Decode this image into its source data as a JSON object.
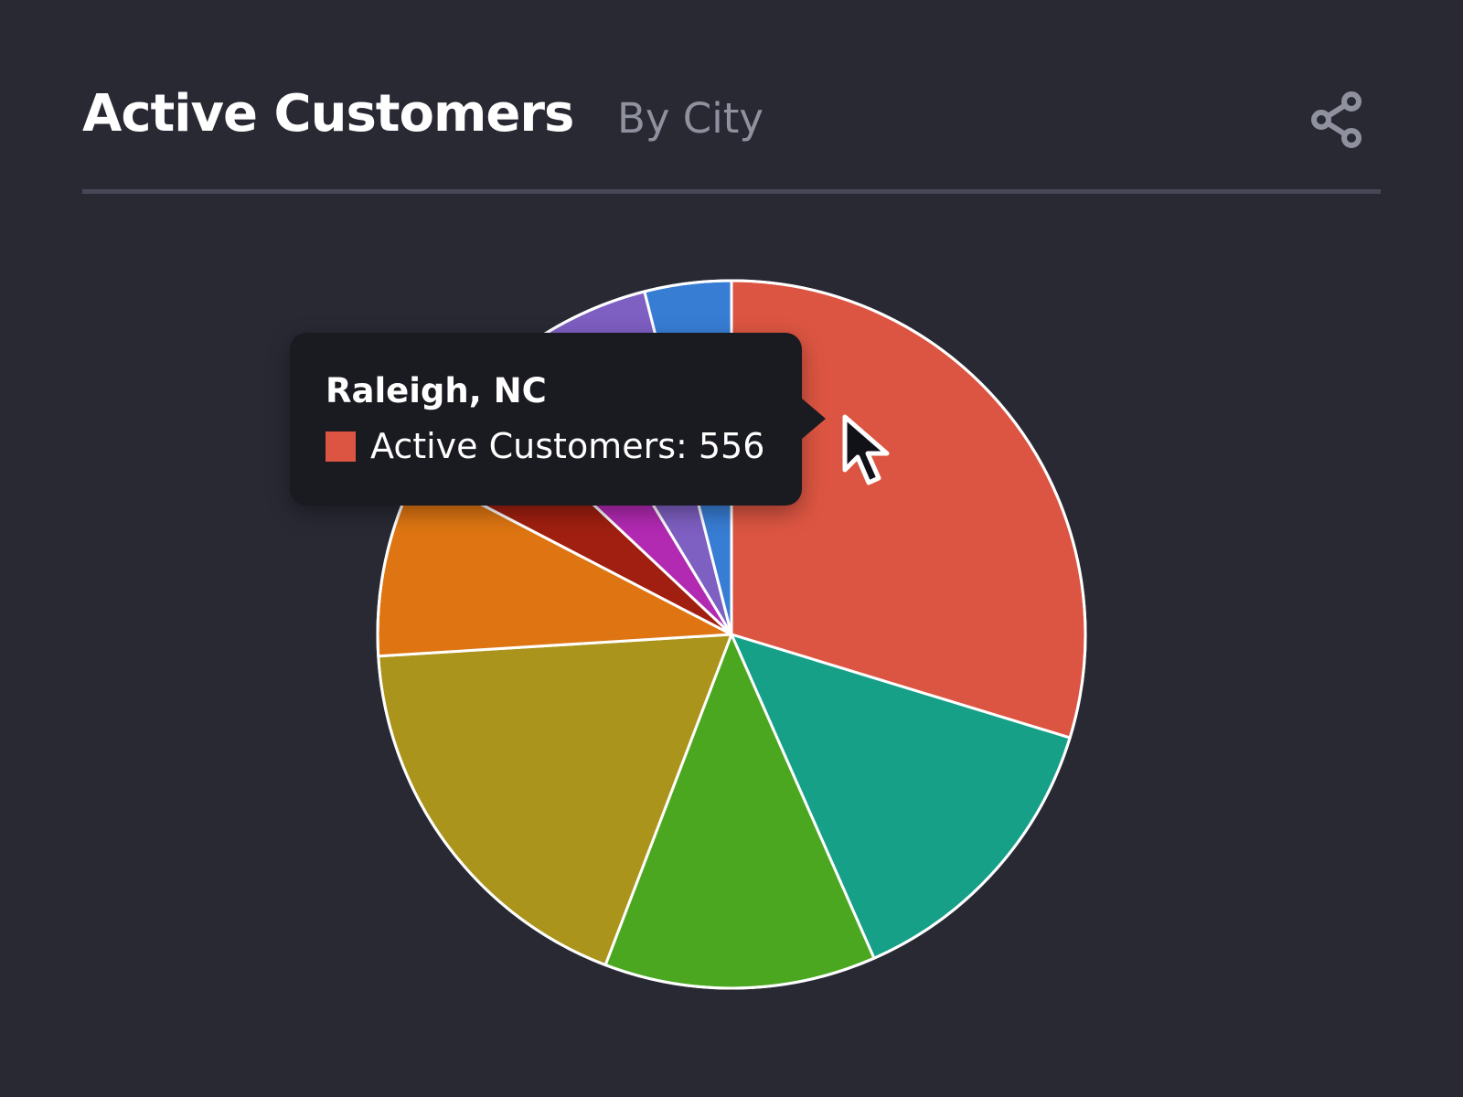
{
  "header": {
    "title": "Active Customers",
    "subtitle": "By City",
    "share_icon": "share-icon"
  },
  "tooltip": {
    "category": "Raleigh, NC",
    "series_label": "Active Customers",
    "value": "556",
    "text": "Active Customers: 556",
    "swatch_color": "#dc5542"
  },
  "chart_data": {
    "type": "pie",
    "title": "Active Customers",
    "subtitle": "By City",
    "series_name": "Active Customers",
    "slice_border_color": "#ffffff",
    "background_color": "#282933",
    "start_angle_deg": 0,
    "direction": "clockwise",
    "slices": [
      {
        "label": "Raleigh, NC",
        "value": 556,
        "color": "#dc5542"
      },
      {
        "label": "",
        "value": 256,
        "color": "#16a088"
      },
      {
        "label": "",
        "value": 232,
        "color": "#4ba720"
      },
      {
        "label": "",
        "value": 341,
        "color": "#ab941b"
      },
      {
        "label": "",
        "value": 161,
        "color": "#de7512"
      },
      {
        "label": "",
        "value": 82,
        "color": "#a01f10"
      },
      {
        "label": "",
        "value": 81,
        "color": "#b229b2"
      },
      {
        "label": "",
        "value": 88,
        "color": "#7e5fc2"
      },
      {
        "label": "",
        "value": 74,
        "color": "#387dd4"
      }
    ],
    "hovered_slice": "Raleigh, NC"
  },
  "cursor": "arrow-cursor-icon"
}
